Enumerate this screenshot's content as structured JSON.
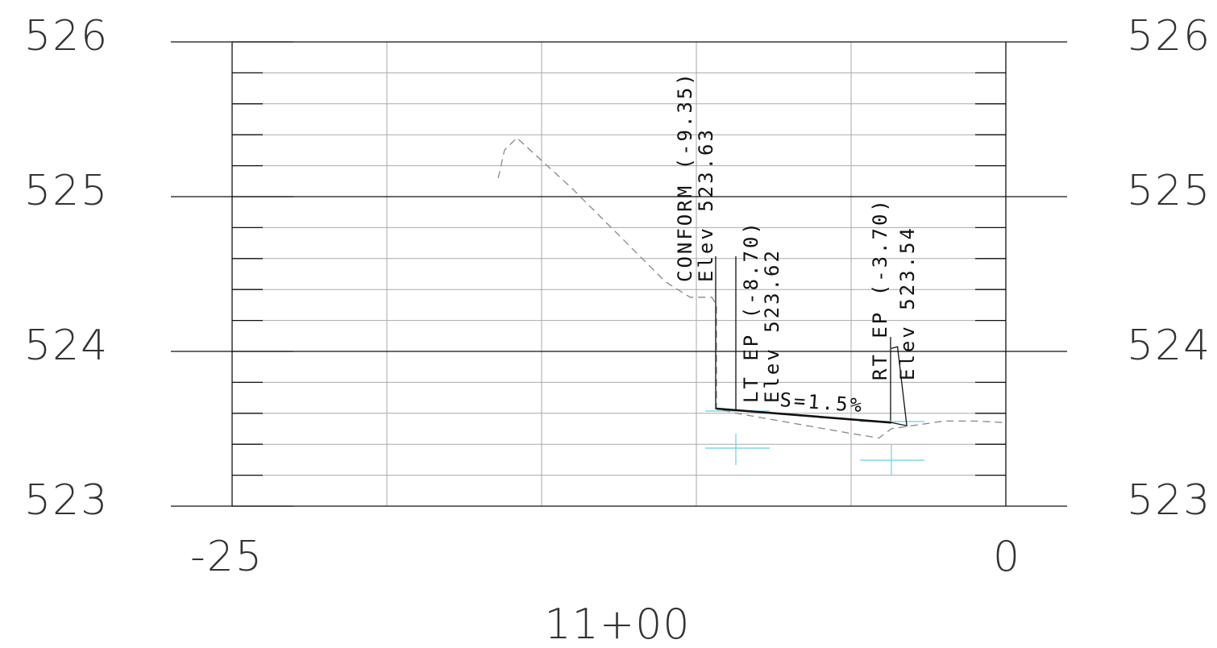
{
  "section": {
    "station": "11+00",
    "offset_labels": [
      "-25",
      "0"
    ],
    "elevation_labels": [
      "526",
      "525",
      "524",
      "523"
    ],
    "slope_label": "S=1.5%"
  },
  "callouts": {
    "conform": {
      "line1": "CONFORM (-9.35)",
      "line2": "Elev 523.63"
    },
    "lt_ep": {
      "line1": "LT EP (-8.70)",
      "line2": "Elev 523.62"
    },
    "rt_ep": {
      "line1": "RT EP (-3.70)",
      "line2": "Elev 523.54"
    }
  },
  "chart_data": {
    "type": "line",
    "xlim": [
      -25,
      0
    ],
    "ylim": [
      523,
      526
    ],
    "grid": true,
    "series": [
      {
        "style": "dashed",
        "points": [
          [
            -16.4,
            525.12
          ],
          [
            -16.2,
            525.3
          ],
          [
            -15.8,
            525.38
          ],
          [
            -14.0,
            525.05
          ],
          [
            -12.5,
            524.75
          ],
          [
            -11.0,
            524.45
          ],
          [
            -10.2,
            524.35
          ],
          [
            -9.5,
            524.35
          ],
          [
            -9.35,
            524.3
          ],
          [
            -9.35,
            523.63
          ],
          [
            -8.7,
            523.6
          ],
          [
            -5.0,
            523.47
          ],
          [
            -4.1,
            523.44
          ],
          [
            -3.7,
            523.5
          ],
          [
            -2.0,
            523.55
          ],
          [
            -1.0,
            523.55
          ],
          [
            0,
            523.54
          ]
        ]
      },
      {
        "style": "solid",
        "points": [
          [
            -9.35,
            523.63
          ],
          [
            -8.7,
            523.62
          ],
          [
            -3.7,
            523.54
          ]
        ]
      },
      {
        "style": "solid",
        "points": [
          [
            -3.7,
            523.54
          ],
          [
            -3.2,
            523.52
          ],
          [
            -3.5,
            524.03
          ],
          [
            -3.7,
            524.02
          ]
        ]
      }
    ]
  },
  "colors": {
    "grid_major": "#111111",
    "grid_minor": "#aaaaaa",
    "ground_dashed": "#888888",
    "design_line": "#111111",
    "survey_marker": "#5fd3e6"
  }
}
